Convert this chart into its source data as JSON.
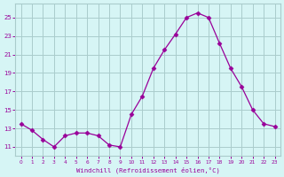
{
  "x": [
    0,
    1,
    2,
    3,
    4,
    5,
    6,
    7,
    8,
    9,
    10,
    11,
    12,
    13,
    14,
    15,
    16,
    17,
    18,
    19,
    20,
    21,
    22,
    23
  ],
  "y": [
    13.5,
    12.8,
    11.8,
    11.0,
    12.2,
    12.5,
    12.5,
    12.2,
    11.2,
    11.0,
    14.5,
    16.5,
    19.5,
    21.5,
    23.2,
    25.0,
    25.5,
    25.0,
    22.2,
    19.5,
    17.5,
    15.0,
    13.5,
    13.2
  ],
  "line_color": "#990099",
  "marker": "D",
  "marker_size": 2.5,
  "bg_color": "#d6f5f5",
  "grid_color": "#aacccc",
  "xlabel": "Windchill (Refroidissement éolien,°C)",
  "ylabel": "",
  "xlim": [
    -0.5,
    23.5
  ],
  "ylim": [
    10.0,
    26.5
  ],
  "yticks": [
    11,
    13,
    15,
    17,
    19,
    21,
    23,
    25
  ],
  "xticks": [
    0,
    1,
    2,
    3,
    4,
    5,
    6,
    7,
    8,
    9,
    10,
    11,
    12,
    13,
    14,
    15,
    16,
    17,
    18,
    19,
    20,
    21,
    22,
    23
  ],
  "xtick_labels": [
    "0",
    "1",
    "2",
    "3",
    "4",
    "5",
    "6",
    "7",
    "8",
    "9",
    "10",
    "11",
    "12",
    "13",
    "14",
    "15",
    "16",
    "17",
    "18",
    "19",
    "20",
    "21",
    "22",
    "23"
  ],
  "font_color": "#990099"
}
